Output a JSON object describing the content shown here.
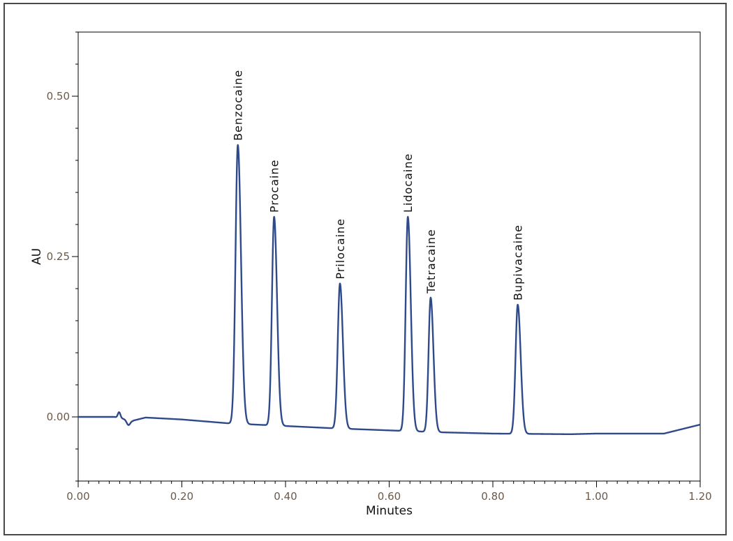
{
  "chart_data": {
    "type": "line",
    "xlabel": "Minutes",
    "ylabel": "AU",
    "xlim": [
      0.0,
      1.2
    ],
    "ylim": [
      -0.1,
      0.6
    ],
    "x_ticks": [
      {
        "value": 0.0,
        "label": "0.00"
      },
      {
        "value": 0.2,
        "label": "0.20"
      },
      {
        "value": 0.4,
        "label": "0.40"
      },
      {
        "value": 0.6,
        "label": "0.60"
      },
      {
        "value": 0.8,
        "label": "0.80"
      },
      {
        "value": 1.0,
        "label": "1.00"
      },
      {
        "value": 1.2,
        "label": "1.20"
      }
    ],
    "y_ticks": [
      {
        "value": 0.0,
        "label": "0.00"
      },
      {
        "value": 0.25,
        "label": "0.25"
      },
      {
        "value": 0.5,
        "label": "0.50"
      }
    ],
    "minor_x_step": 0.02,
    "minor_y_step": 0.05,
    "grid": false,
    "line_color": "#2e4a8a",
    "baseline": [
      {
        "x": 0.0,
        "y": 0.0
      },
      {
        "x": 0.07,
        "y": 0.0
      },
      {
        "x": 0.075,
        "y": -0.001
      },
      {
        "x": 0.105,
        "y": -0.006
      },
      {
        "x": 0.13,
        "y": -0.001
      },
      {
        "x": 0.2,
        "y": -0.004
      },
      {
        "x": 0.29,
        "y": -0.01
      },
      {
        "x": 0.5,
        "y": -0.018
      },
      {
        "x": 0.7,
        "y": -0.024
      },
      {
        "x": 0.8,
        "y": -0.026
      },
      {
        "x": 0.95,
        "y": -0.027
      },
      {
        "x": 1.0,
        "y": -0.026
      },
      {
        "x": 1.13,
        "y": -0.026
      },
      {
        "x": 1.16,
        "y": -0.02
      },
      {
        "x": 1.2,
        "y": -0.012
      }
    ],
    "bumps": [
      {
        "x": 0.079,
        "height": 0.009,
        "width": 0.0025
      },
      {
        "x": 0.097,
        "height": -0.008,
        "width": 0.0035
      }
    ],
    "peaks": [
      {
        "name": "Benzocaine",
        "x": 0.308,
        "y": 0.424,
        "width": 0.0045
      },
      {
        "name": "Procaine",
        "x": 0.378,
        "y": 0.312,
        "width": 0.0042
      },
      {
        "name": "Prilocaine",
        "x": 0.505,
        "y": 0.208,
        "width": 0.0042
      },
      {
        "name": "Lidocaine",
        "x": 0.636,
        "y": 0.312,
        "width": 0.0042
      },
      {
        "name": "Tetracaine",
        "x": 0.68,
        "y": 0.186,
        "width": 0.004
      },
      {
        "name": "Bupivacaine",
        "x": 0.848,
        "y": 0.175,
        "width": 0.0042
      }
    ]
  }
}
